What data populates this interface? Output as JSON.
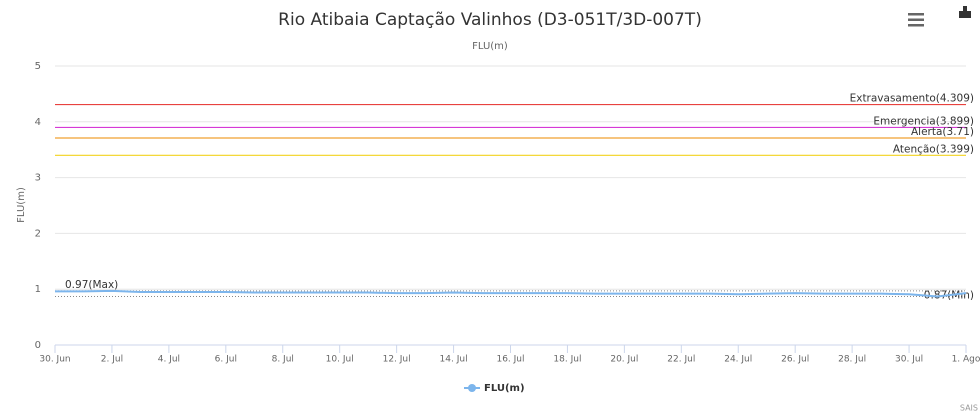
{
  "chart_data": {
    "type": "line",
    "title": "Rio Atibaia Captação Valinhos (D3-051T/3D-007T)",
    "subtitle": "FLU(m)",
    "y_axis_label": "FLU(m)",
    "credits": "SAIS",
    "categories": [
      "30. Jun",
      null,
      "2. Jul",
      null,
      "4. Jul",
      null,
      "6. Jul",
      null,
      "8. Jul",
      null,
      "10. Jul",
      null,
      "12. Jul",
      null,
      "14. Jul",
      null,
      "16. Jul",
      null,
      "18. Jul",
      null,
      "20. Jul",
      null,
      "22. Jul",
      null,
      "24. Jul",
      null,
      "26. Jul",
      null,
      "28. Jul",
      null,
      "30. Jul",
      null,
      "1. Ago"
    ],
    "series": [
      {
        "name": "FLU(m)",
        "color": "#7cb5ec",
        "values": [
          0.96,
          0.96,
          0.97,
          0.95,
          0.95,
          0.95,
          0.95,
          0.94,
          0.94,
          0.94,
          0.94,
          0.94,
          0.93,
          0.93,
          0.94,
          0.93,
          0.93,
          0.93,
          0.93,
          0.92,
          0.92,
          0.92,
          0.92,
          0.92,
          0.91,
          0.92,
          0.93,
          0.92,
          0.92,
          0.92,
          0.91,
          0.87,
          0.93
        ]
      }
    ],
    "ylim": [
      0,
      5
    ],
    "yticks": [
      0,
      1,
      2,
      3,
      4,
      5
    ],
    "grid": true,
    "plot_lines": [
      {
        "label": "Extravasamento(4.309)",
        "value": 4.309,
        "color": "#e8423f"
      },
      {
        "label": "Emergencia(3.899)",
        "value": 3.899,
        "color": "#d63ad6"
      },
      {
        "label": "Alerta(3.71)",
        "value": 3.71,
        "color": "#f0a030"
      },
      {
        "label": "Atenção(3.399)",
        "value": 3.399,
        "color": "#f2d21e"
      }
    ],
    "min_max_lines": [
      {
        "label": "0.97(Max)",
        "value": 0.97
      },
      {
        "label": "0.87(Min)",
        "value": 0.87
      }
    ],
    "legend": "bottom"
  }
}
